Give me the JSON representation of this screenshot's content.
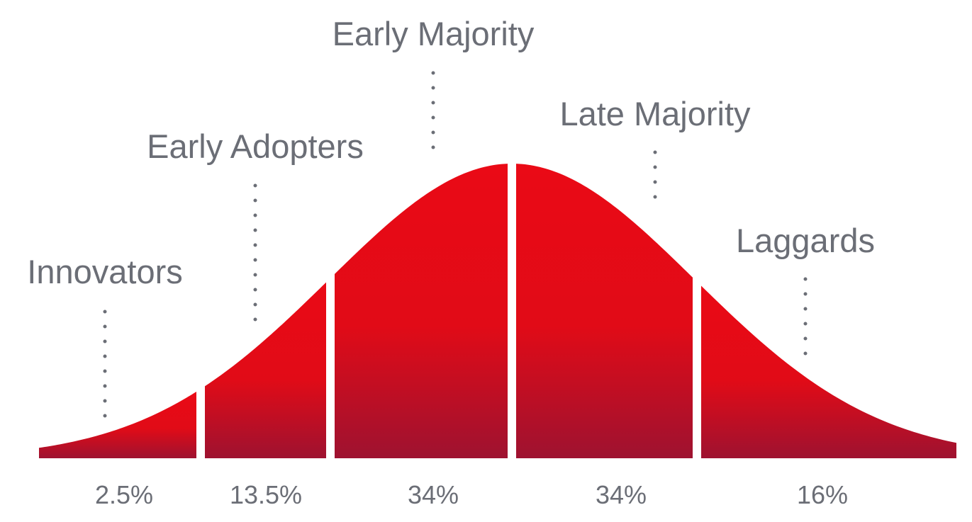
{
  "chart_data": {
    "type": "area",
    "title": "",
    "xlabel": "",
    "ylabel": "",
    "segments": [
      {
        "name": "Innovators",
        "value": 2.5,
        "label": "2.5%"
      },
      {
        "name": "Early Adopters",
        "value": 13.5,
        "label": "13.5%"
      },
      {
        "name": "Early Majority",
        "value": 34,
        "label": "34%"
      },
      {
        "name": "Late Majority",
        "value": 34,
        "label": "34%"
      },
      {
        "name": "Laggards",
        "value": 16,
        "label": "16%"
      }
    ],
    "colors": {
      "fill_top": "#ea0a16",
      "fill_mid": "#e10b17",
      "fill_bottom": "#9e1230",
      "text": "#6b6e76",
      "divider": "#ffffff"
    }
  }
}
